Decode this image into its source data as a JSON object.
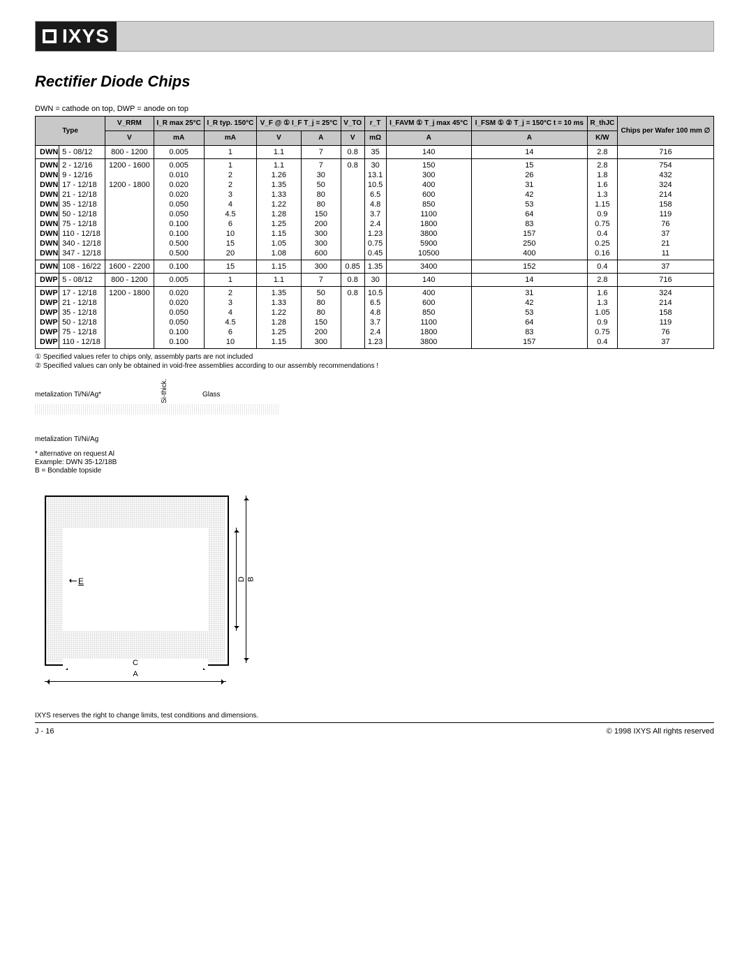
{
  "logo": "IXYS",
  "title": "Rectifier Diode Chips",
  "polarity_note": "DWN = cathode on top, DWP = anode on top",
  "headers": {
    "type": "Type",
    "vrrm": "V_RRM",
    "vrrm_unit": "V",
    "ir25": "I_R max 25°C",
    "ir25_unit": "mA",
    "ir150": "I_R typ. 150°C",
    "ir150_unit": "mA",
    "vf": "V_F @ ① I_F T_j = 25°C",
    "vf_v": "V",
    "vf_a": "A",
    "vto": "V_TO",
    "vto_unit": "V",
    "rt": "r_T",
    "rt_unit": "mΩ",
    "ifavm": "I_FAVM ① T_j max 45°C",
    "ifavm_unit": "A",
    "ifsm": "I_FSM ① ② T_j = 150°C t = 10 ms",
    "ifsm_a": "A",
    "rthjc": "R_thJC",
    "rthjc_unit": "K/W",
    "chips": "Chips per Wafer 100 mm ∅"
  },
  "sections": [
    {
      "rows": [
        {
          "p": "DWN",
          "c": "5 - 08/12",
          "vrrm": "800 - 1200",
          "ir25": "0.005",
          "ir150": "1",
          "vfv": "1.1",
          "vfa": "7",
          "vto": "0.8",
          "rt": "35",
          "ifavm": "140",
          "ifsm": "14",
          "rth": "2.8",
          "cpw": "716"
        }
      ]
    },
    {
      "rows": [
        {
          "p": "DWN",
          "c": "2 - 12/16",
          "vrrm": "1200 - 1600",
          "ir25": "0.005",
          "ir150": "1",
          "vfv": "1.1",
          "vfa": "7",
          "vto": "0.8",
          "rt": "30",
          "ifavm": "150",
          "ifsm": "15",
          "rth": "2.8",
          "cpw": "754"
        },
        {
          "p": "DWN",
          "c": "9 - 12/16",
          "vrrm": "",
          "ir25": "0.010",
          "ir150": "2",
          "vfv": "1.26",
          "vfa": "30",
          "vto": "",
          "rt": "13.1",
          "ifavm": "300",
          "ifsm": "26",
          "rth": "1.8",
          "cpw": "432"
        },
        {
          "p": "DWN",
          "c": "17 - 12/18",
          "vrrm": "1200 - 1800",
          "ir25": "0.020",
          "ir150": "2",
          "vfv": "1.35",
          "vfa": "50",
          "vto": "",
          "rt": "10.5",
          "ifavm": "400",
          "ifsm": "31",
          "rth": "1.6",
          "cpw": "324"
        },
        {
          "p": "DWN",
          "c": "21 - 12/18",
          "vrrm": "",
          "ir25": "0.020",
          "ir150": "3",
          "vfv": "1.33",
          "vfa": "80",
          "vto": "",
          "rt": "6.5",
          "ifavm": "600",
          "ifsm": "42",
          "rth": "1.3",
          "cpw": "214"
        },
        {
          "p": "DWN",
          "c": "35 - 12/18",
          "vrrm": "",
          "ir25": "0.050",
          "ir150": "4",
          "vfv": "1.22",
          "vfa": "80",
          "vto": "",
          "rt": "4.8",
          "ifavm": "850",
          "ifsm": "53",
          "rth": "1.15",
          "cpw": "158"
        },
        {
          "p": "DWN",
          "c": "50 - 12/18",
          "vrrm": "",
          "ir25": "0.050",
          "ir150": "4.5",
          "vfv": "1.28",
          "vfa": "150",
          "vto": "",
          "rt": "3.7",
          "ifavm": "1100",
          "ifsm": "64",
          "rth": "0.9",
          "cpw": "119"
        },
        {
          "p": "DWN",
          "c": "75 - 12/18",
          "vrrm": "",
          "ir25": "0.100",
          "ir150": "6",
          "vfv": "1.25",
          "vfa": "200",
          "vto": "",
          "rt": "2.4",
          "ifavm": "1800",
          "ifsm": "83",
          "rth": "0.75",
          "cpw": "76"
        },
        {
          "p": "DWN",
          "c": "110 - 12/18",
          "vrrm": "",
          "ir25": "0.100",
          "ir150": "10",
          "vfv": "1.15",
          "vfa": "300",
          "vto": "",
          "rt": "1.23",
          "ifavm": "3800",
          "ifsm": "157",
          "rth": "0.4",
          "cpw": "37"
        },
        {
          "p": "DWN",
          "c": "340 - 12/18",
          "vrrm": "",
          "ir25": "0.500",
          "ir150": "15",
          "vfv": "1.05",
          "vfa": "300",
          "vto": "",
          "rt": "0.75",
          "ifavm": "5900",
          "ifsm": "250",
          "rth": "0.25",
          "cpw": "21"
        },
        {
          "p": "DWN",
          "c": "347 - 12/18",
          "vrrm": "",
          "ir25": "0.500",
          "ir150": "20",
          "vfv": "1.08",
          "vfa": "600",
          "vto": "",
          "rt": "0.45",
          "ifavm": "10500",
          "ifsm": "400",
          "rth": "0.16",
          "cpw": "11"
        }
      ]
    },
    {
      "rows": [
        {
          "p": "DWN",
          "c": "108 - 16/22",
          "vrrm": "1600 - 2200",
          "ir25": "0.100",
          "ir150": "15",
          "vfv": "1.15",
          "vfa": "300",
          "vto": "0.85",
          "rt": "1.35",
          "ifavm": "3400",
          "ifsm": "152",
          "rth": "0.4",
          "cpw": "37"
        }
      ]
    },
    {
      "rows": [
        {
          "p": "DWP",
          "c": "5 - 08/12",
          "vrrm": "800 - 1200",
          "ir25": "0.005",
          "ir150": "1",
          "vfv": "1.1",
          "vfa": "7",
          "vto": "0.8",
          "rt": "30",
          "ifavm": "140",
          "ifsm": "14",
          "rth": "2.8",
          "cpw": "716"
        }
      ]
    },
    {
      "rows": [
        {
          "p": "DWP",
          "c": "17 - 12/18",
          "vrrm": "1200 - 1800",
          "ir25": "0.020",
          "ir150": "2",
          "vfv": "1.35",
          "vfa": "50",
          "vto": "0.8",
          "rt": "10.5",
          "ifavm": "400",
          "ifsm": "31",
          "rth": "1.6",
          "cpw": "324"
        },
        {
          "p": "DWP",
          "c": "21 - 12/18",
          "vrrm": "",
          "ir25": "0.020",
          "ir150": "3",
          "vfv": "1.33",
          "vfa": "80",
          "vto": "",
          "rt": "6.5",
          "ifavm": "600",
          "ifsm": "42",
          "rth": "1.3",
          "cpw": "214"
        },
        {
          "p": "DWP",
          "c": "35 - 12/18",
          "vrrm": "",
          "ir25": "0.050",
          "ir150": "4",
          "vfv": "1.22",
          "vfa": "80",
          "vto": "",
          "rt": "4.8",
          "ifavm": "850",
          "ifsm": "53",
          "rth": "1.05",
          "cpw": "158"
        },
        {
          "p": "DWP",
          "c": "50 - 12/18",
          "vrrm": "",
          "ir25": "0.050",
          "ir150": "4.5",
          "vfv": "1.28",
          "vfa": "150",
          "vto": "",
          "rt": "3.7",
          "ifavm": "1100",
          "ifsm": "64",
          "rth": "0.9",
          "cpw": "119"
        },
        {
          "p": "DWP",
          "c": "75 - 12/18",
          "vrrm": "",
          "ir25": "0.100",
          "ir150": "6",
          "vfv": "1.25",
          "vfa": "200",
          "vto": "",
          "rt": "2.4",
          "ifavm": "1800",
          "ifsm": "83",
          "rth": "0.75",
          "cpw": "76"
        },
        {
          "p": "DWP",
          "c": "110 - 12/18",
          "vrrm": "",
          "ir25": "0.100",
          "ir150": "10",
          "vfv": "1.15",
          "vfa": "300",
          "vto": "",
          "rt": "1.23",
          "ifavm": "3800",
          "ifsm": "157",
          "rth": "0.4",
          "cpw": "37"
        }
      ]
    }
  ],
  "footnotes": [
    "① Specified values refer to chips only, assembly parts are not included",
    "② Specified values can only be obtained in void-free assemblies according to our assembly recommendations !"
  ],
  "metal": {
    "top": "metalization Ti/Ni/Ag*",
    "glass": "Glass",
    "si": "Si-thick.",
    "bottom": "metalization Ti/Ni/Ag",
    "alt": "* alternative on request Al",
    "example": "Example: DWN 35-12/18B",
    "bond": "B = Bondable topside"
  },
  "dim": {
    "a": "A",
    "b": "B",
    "c": "C",
    "d": "D",
    "e": "E"
  },
  "disclaimer": "IXYS reserves the right to change limits, test conditions and dimensions.",
  "page": "J - 16",
  "copyright": "© 1998 IXYS All rights reserved"
}
